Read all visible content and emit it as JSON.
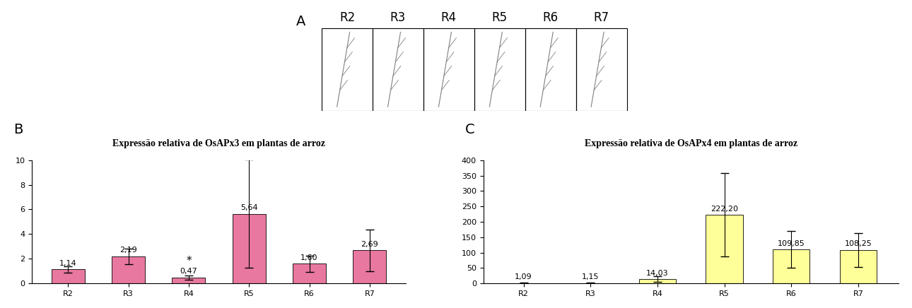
{
  "stages_panel": {
    "label": "A",
    "stages": [
      "R2",
      "R3",
      "R4",
      "R5",
      "R6",
      "R7"
    ]
  },
  "chart_data": [
    {
      "type": "bar",
      "panel": "B",
      "title": "Expressão relativa de OsAPx3 em plantas de arroz",
      "categories": [
        "R2",
        "R3",
        "R4",
        "R5",
        "R6",
        "R7"
      ],
      "values": [
        1.14,
        2.19,
        0.47,
        5.64,
        1.6,
        2.69
      ],
      "value_labels": [
        "1,14",
        "2,19",
        "0,47",
        "5,64",
        "1,60",
        "2,69"
      ],
      "errors": [
        0.25,
        0.65,
        0.17,
        4.4,
        0.65,
        1.7
      ],
      "annotations": [
        {
          "category": "R4",
          "text": "*"
        }
      ],
      "color": "#e8789f",
      "data_labels": true,
      "grid": false,
      "ylim": [
        0,
        10
      ],
      "yticks": [
        0,
        2,
        4,
        6,
        8,
        10
      ]
    },
    {
      "type": "bar",
      "panel": "C",
      "title": "Expressão relativa de OsAPx4 em plantas de arroz",
      "categories": [
        "R2",
        "R3",
        "R4",
        "R5",
        "R6",
        "R7"
      ],
      "values": [
        1.09,
        1.15,
        14.03,
        222.2,
        109.85,
        108.25
      ],
      "value_labels": [
        "1,09",
        "1,15",
        "14,03",
        "222,20",
        "109,85",
        "108,25"
      ],
      "errors": [
        1.0,
        1.0,
        9.0,
        135.0,
        60.0,
        55.0
      ],
      "annotations": [],
      "color": "#ffff99",
      "data_labels": true,
      "grid": false,
      "ylim": [
        0,
        400
      ],
      "yticks": [
        0,
        50,
        100,
        150,
        200,
        250,
        300,
        350,
        400
      ]
    }
  ]
}
